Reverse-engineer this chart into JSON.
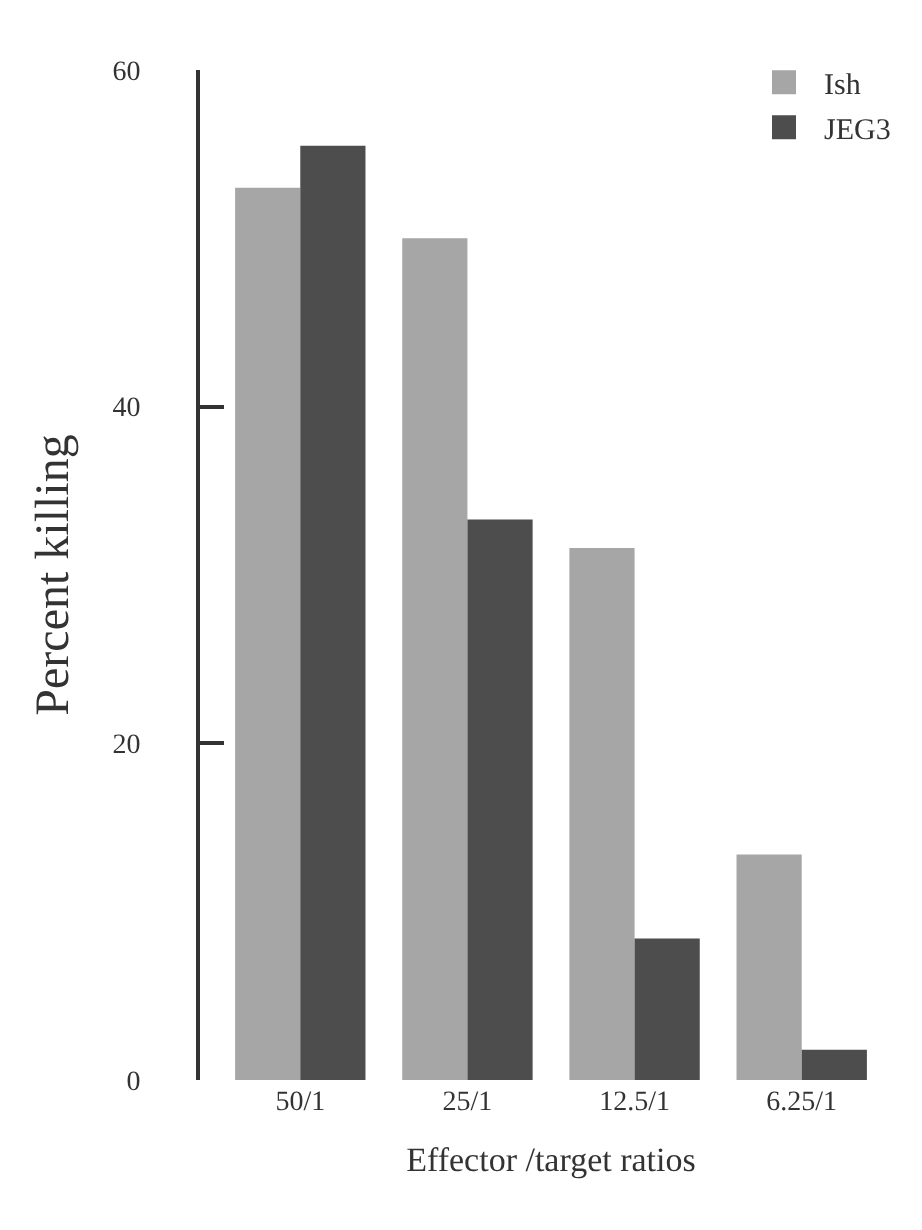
{
  "chart_data": {
    "type": "bar",
    "xlabel": "Effector /target ratios",
    "ylabel": "Percent killing",
    "categories": [
      "50/1",
      "25/1",
      "12.5/1",
      "6.25/1"
    ],
    "series": [
      {
        "name": "Ish",
        "color": "#a6a6a6",
        "values": [
          53,
          50,
          31.6,
          13.4
        ]
      },
      {
        "name": "JEG3",
        "color": "#4d4d4d",
        "values": [
          55.5,
          33.3,
          8.4,
          1.8
        ]
      }
    ],
    "ylim": [
      0,
      60
    ],
    "yticks": [
      0,
      20,
      40,
      60
    ],
    "legend": "top right"
  }
}
